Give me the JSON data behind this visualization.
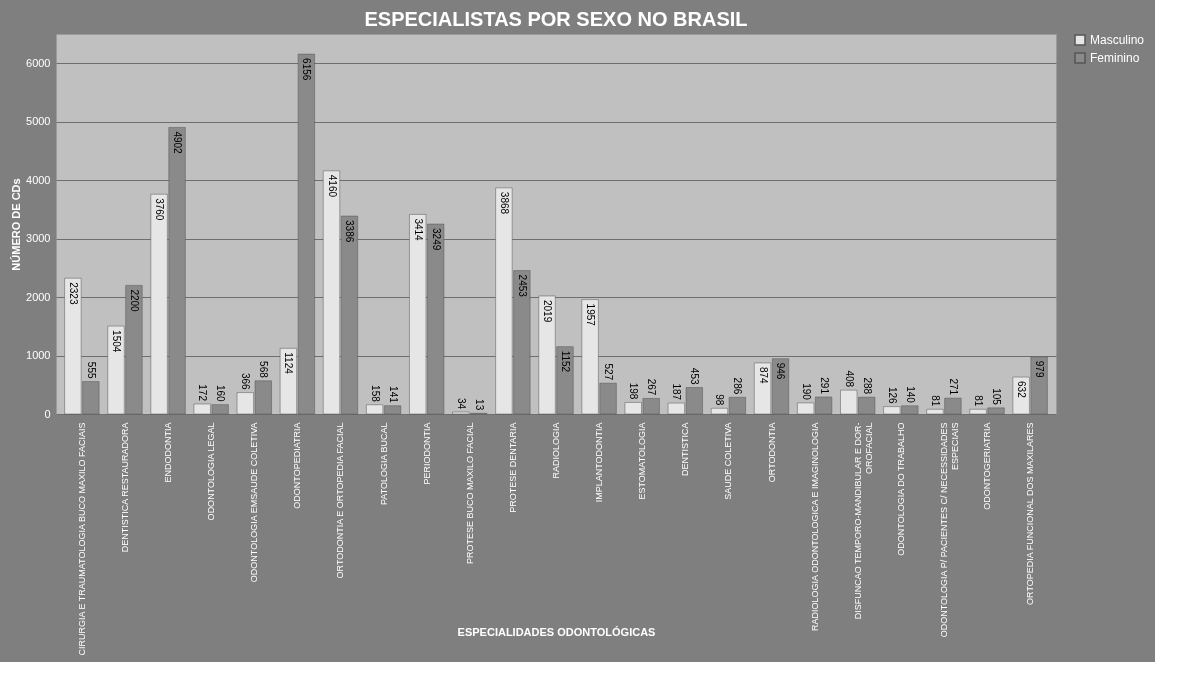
{
  "chart_data": {
    "type": "bar",
    "title": "ESPECIALISTAS POR SEXO NO BRASIL",
    "xlabel": "ESPECIALIDADES ODONTOLÓGICAS",
    "ylabel": "NÚMERO  DE  CDs",
    "categories": [
      "CIRURGIA E TRAUMATOLOGIA BUCO MAXILO FACIAIS",
      "DENTISTICA RESTAURADORA",
      "ENDODONTIA",
      "ODONTOLOGIA LEGAL",
      "ODONTOLOGIA EMSAUDE COLETIVA",
      "ODONTOPEDIATRIA",
      "ORTODONTIA E ORTOPEDIA FACIAL",
      "PATOLOGIA BUCAL",
      "PERIODONTIA",
      "PROTESE BUCO MAXILO FACIAL",
      "PROTESE DENTARIA",
      "RADIOLOGIA",
      "IMPLANTODONTIA",
      "ESTOMATOLOGIA",
      "DENTISTICA",
      "SAUDE COLETIVA",
      "ORTODONTIA",
      "RADIOLOGIA ODONTOLOGICA E IMAGINOLOGIA",
      "DISFUNCAO TEMPORO-MANDIBULAR E DOR-\nOROFACIAL",
      "ODONTOLOGIA DO TRABALHO",
      "ODONTOLOGIA P/ PACIENTES C/ NECESSIDADES\nESPECIAIS",
      "ODONTOGERIATRIA",
      "ORTOPEDIA FUNCIONAL DOS MAXILARES"
    ],
    "series": [
      {
        "name": "Masculino",
        "color": "#e6e6e6",
        "values": [
          2323,
          1504,
          3760,
          172,
          366,
          1124,
          4160,
          158,
          3414,
          34,
          3868,
          2019,
          1957,
          198,
          187,
          98,
          874,
          190,
          408,
          126,
          81,
          81,
          632
        ]
      },
      {
        "name": "Feminino",
        "color": "#8a8a8a",
        "values": [
          555,
          2200,
          4902,
          160,
          568,
          6156,
          3386,
          141,
          3249,
          13,
          2453,
          1152,
          527,
          267,
          453,
          286,
          946,
          291,
          288,
          140,
          271,
          105,
          979
        ]
      }
    ],
    "ylim": [
      0,
      6500
    ],
    "yticks": [
      0,
      1000,
      2000,
      3000,
      4000,
      5000,
      6000
    ],
    "grid": "y",
    "legend": "right",
    "data_labels": true
  }
}
